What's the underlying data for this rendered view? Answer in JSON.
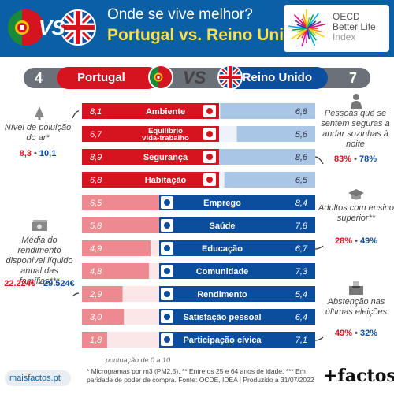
{
  "header": {
    "title": "Onde se vive melhor?",
    "subtitle": "Portugal vs. Reino Unido",
    "vs": "VS",
    "oecd": {
      "line1": "OECD",
      "line2": "Better Life",
      "line3": "Index"
    }
  },
  "band": {
    "pt_rank": "4",
    "pt_name": "Portugal",
    "vs": "VS",
    "uk_name": "Reino Unido",
    "uk_rank": "7"
  },
  "colors": {
    "pt_red": "#d6141f",
    "pt_red_light": "#ec8a8f",
    "uk_blue": "#0b4e9e",
    "uk_blue_light": "#aac6e6",
    "header_blue": "#0b5fa5",
    "band_grey": "#6b7079"
  },
  "chart_data": {
    "type": "bar",
    "categories": [
      "Ambiente",
      "Equilíbrio vida-trabalho",
      "Segurança",
      "Habitação",
      "Emprego",
      "Saúde",
      "Educação",
      "Comunidade",
      "Rendimento",
      "Satisfação pessoal",
      "Participação cívica"
    ],
    "series": [
      {
        "name": "Portugal",
        "values": [
          8.1,
          6.7,
          8.9,
          6.8,
          6.5,
          5.8,
          4.9,
          4.8,
          2.9,
          3.0,
          1.8
        ]
      },
      {
        "name": "Reino Unido",
        "values": [
          6.8,
          5.6,
          8.6,
          6.5,
          8.4,
          7.8,
          6.7,
          7.3,
          5.4,
          6.4,
          7.1
        ]
      }
    ],
    "value_labels_pt": [
      "8,1",
      "6,7",
      "8,9",
      "6,8",
      "6,5",
      "5,8",
      "4,9",
      "4,8",
      "2,9",
      "3,0",
      "1,8"
    ],
    "value_labels_uk": [
      "6,8",
      "5,6",
      "8,6",
      "6,5",
      "8,4",
      "7,8",
      "6,7",
      "7,3",
      "5,4",
      "6,4",
      "7,1"
    ],
    "category_lines": [
      [
        "Ambiente"
      ],
      [
        "Equilíbrio",
        "vida-trabalho"
      ],
      [
        "Segurança"
      ],
      [
        "Habitação"
      ],
      [
        "Emprego"
      ],
      [
        "Saúde"
      ],
      [
        "Educação"
      ],
      [
        "Comunidade"
      ],
      [
        "Rendimento"
      ],
      [
        "Satisfação pessoal"
      ],
      [
        "Participação cívica"
      ]
    ],
    "icons": [
      "tree-icon",
      "work-life-icon",
      "police-icon",
      "house-icon",
      "briefcase-icon",
      "health-icon",
      "education-icon",
      "community-icon",
      "money-icon",
      "satisfaction-icon",
      "ballot-icon"
    ],
    "ylim": [
      0,
      10
    ],
    "scale_note": "pontuação de 0 a 10",
    "legend": "top"
  },
  "annotations": {
    "pollution": {
      "text": "Nível de poluição do ar*",
      "pt": "8,3",
      "uk": "10,1"
    },
    "income": {
      "text": "Média do rendimento disponível líquido anual das famílias***",
      "pt": "22.224€",
      "uk": "29.524€"
    },
    "safety": {
      "text": "Pessoas que se sentem seguras a andar sozinhas à noite",
      "pt": "83%",
      "uk": "78%"
    },
    "education": {
      "text": "Adultos com ensino superior**",
      "pt": "28%",
      "uk": "49%"
    },
    "voting": {
      "text": "Abstenção nas últimas eleições",
      "pt": "49%",
      "uk": "32%"
    }
  },
  "footer": {
    "footnote": "* Microgramas por m3 (PM2,5). ** Entre os 25 e 64 anos de idade. *** Em paridade de poder de compra. Fonte: OCDE, IDEA | Produzido a 31/07/2022",
    "site": "maisfactos.pt",
    "brand": "+factos"
  }
}
